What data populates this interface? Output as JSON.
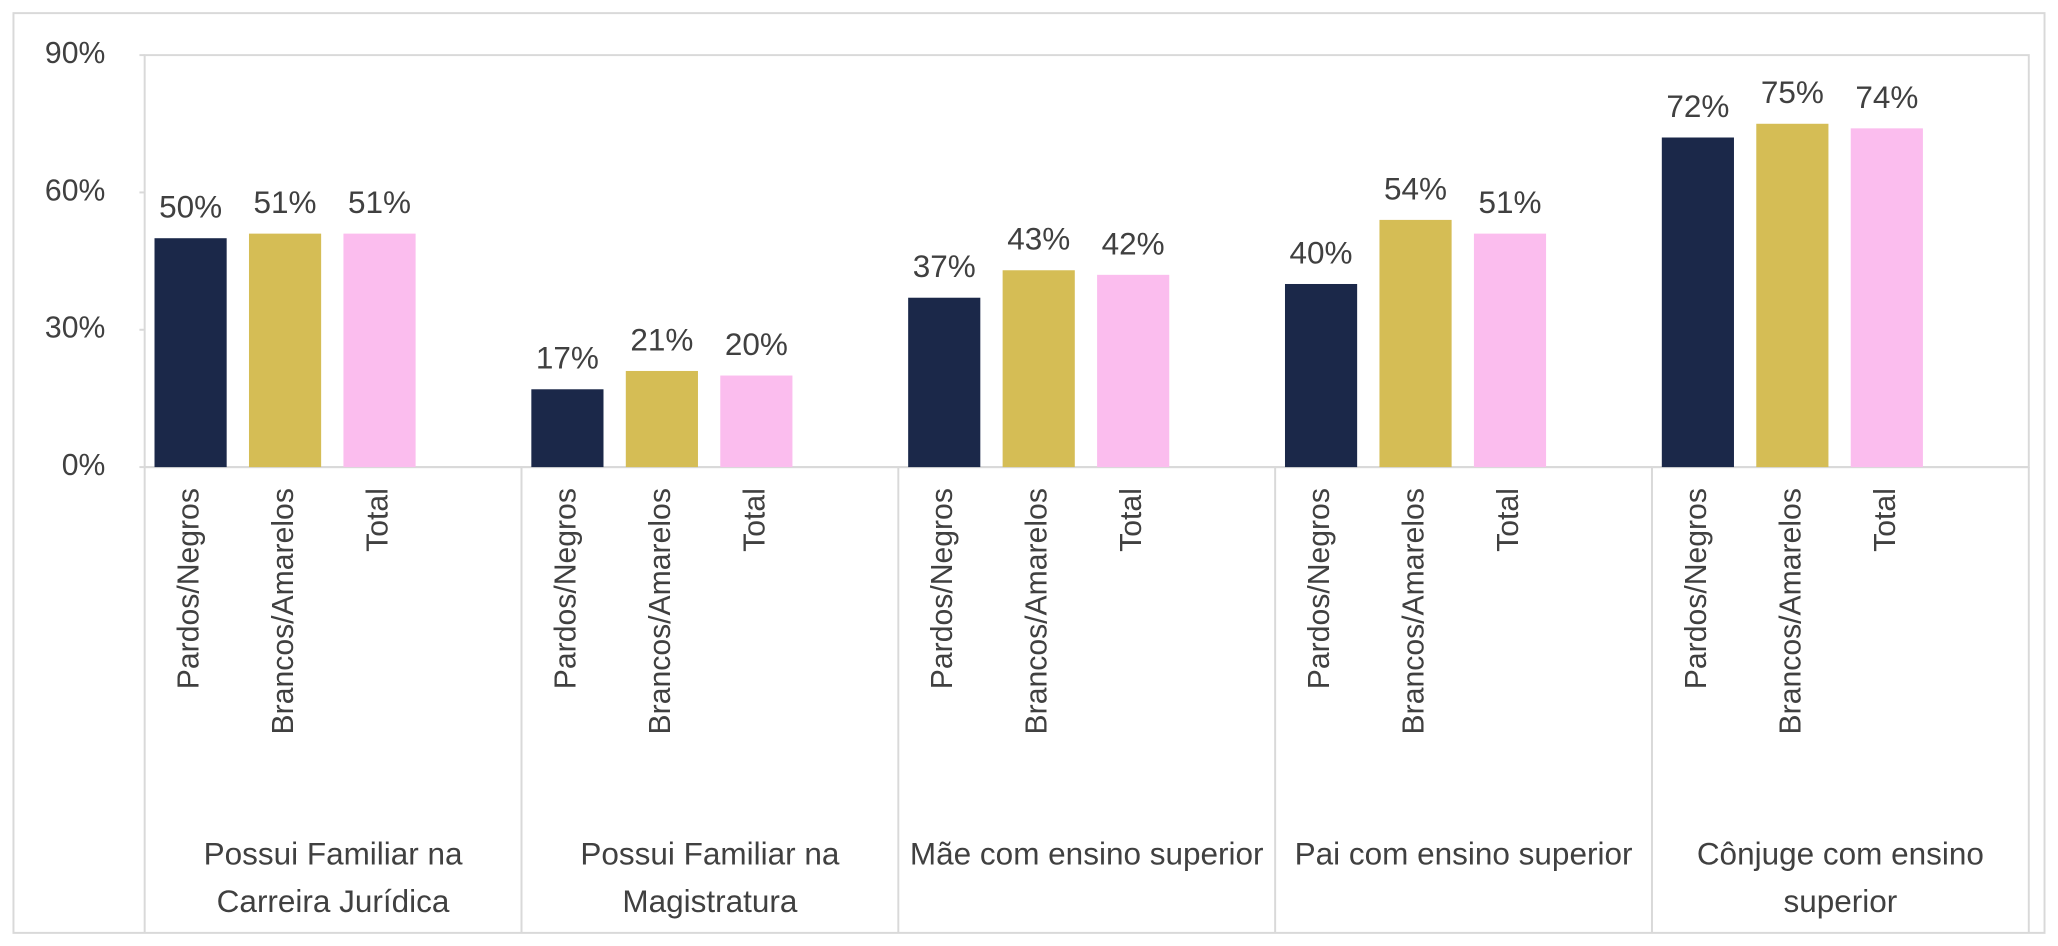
{
  "chart_data": {
    "type": "bar",
    "categories": [
      "Possui Familiar na Carreira Jurídica",
      "Possui Familiar na Magistratura",
      "Mãe com ensino superior",
      "Pai com ensino superior",
      "Cônjuge com ensino superior"
    ],
    "series": [
      {
        "name": "Pardos/Negros",
        "color": "#1b2849",
        "values": [
          50,
          17,
          37,
          40,
          72
        ],
        "value_labels": [
          "50%",
          "17%",
          "37%",
          "40%",
          "72%"
        ]
      },
      {
        "name": "Brancos/Amarelos",
        "color": "#d5bd55",
        "values": [
          51,
          21,
          43,
          54,
          75
        ],
        "value_labels": [
          "51%",
          "21%",
          "43%",
          "54%",
          "75%"
        ]
      },
      {
        "name": "Total",
        "color": "#fbbdee",
        "values": [
          51,
          20,
          42,
          51,
          74
        ],
        "value_labels": [
          "51%",
          "20%",
          "42%",
          "51%",
          "74%"
        ]
      }
    ],
    "ylim": [
      0,
      90
    ],
    "yticks": [
      {
        "value": 0,
        "label": "0%"
      },
      {
        "value": 30,
        "label": "30%"
      },
      {
        "value": 60,
        "label": "60%"
      },
      {
        "value": 90,
        "label": "90%"
      }
    ],
    "grid": false
  }
}
